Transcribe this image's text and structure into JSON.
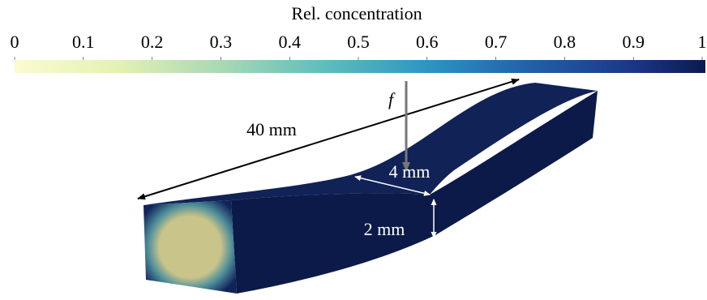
{
  "colorbar": {
    "title": "Rel. concentration",
    "lim": [
      0,
      1
    ],
    "ticks": [
      0,
      0.1,
      0.2,
      0.3,
      0.4,
      0.5,
      0.6,
      0.7,
      0.8,
      0.9,
      1
    ]
  },
  "annotations": {
    "length": "40 mm",
    "width": "4 mm",
    "height": "2 mm",
    "force": "f"
  }
}
